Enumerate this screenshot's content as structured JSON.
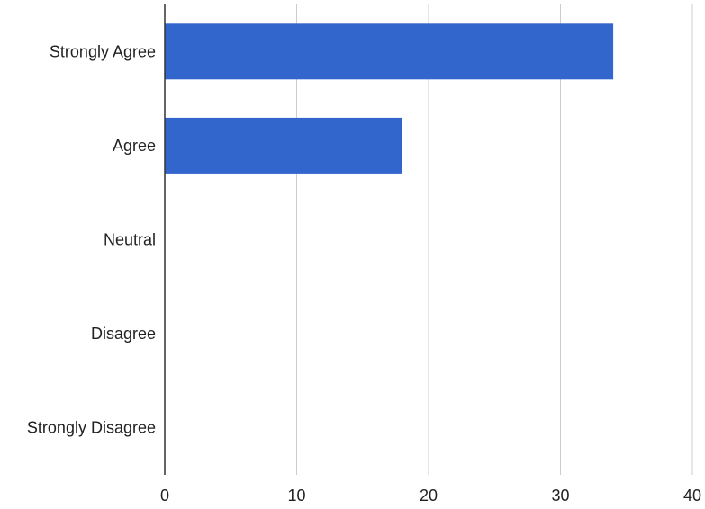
{
  "chart_data": {
    "type": "bar",
    "orientation": "horizontal",
    "title": "",
    "xlabel": "",
    "ylabel": "",
    "categories": [
      "Strongly Agree",
      "Agree",
      "Neutral",
      "Disagree",
      "Strongly Disagree"
    ],
    "values": [
      34,
      18,
      0,
      0,
      0
    ],
    "xlim": [
      0,
      40
    ],
    "x_ticks": [
      "0",
      "10",
      "20",
      "30",
      "40"
    ],
    "grid": true,
    "legend": "none",
    "colors": {
      "bar": "#3366cc",
      "grid": "#cccccc",
      "axis": "#333333",
      "text": "#222222"
    }
  }
}
